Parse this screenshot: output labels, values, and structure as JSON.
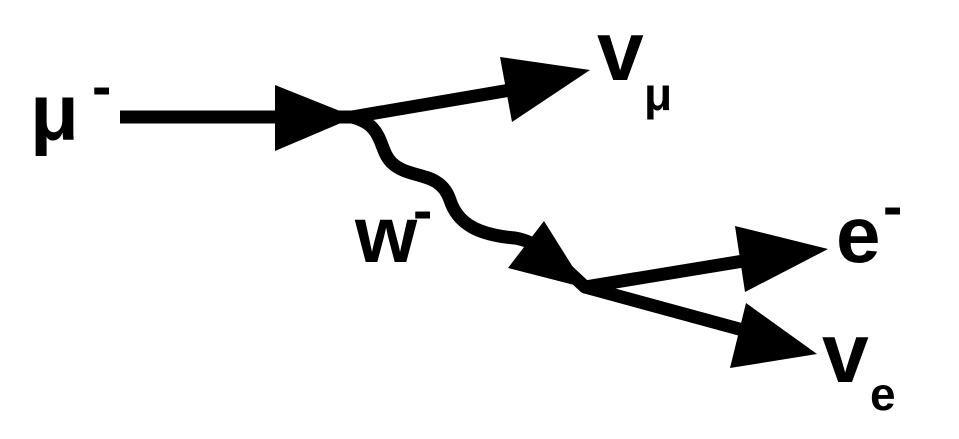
{
  "diagram": {
    "particles": {
      "muon": {
        "symbol": "μ",
        "charge": "-"
      },
      "muon_neutrino": {
        "symbol": "v",
        "subscript": "μ"
      },
      "w_boson": {
        "symbol": "w",
        "charge": "-"
      },
      "electron": {
        "symbol": "e",
        "charge": "-"
      },
      "electron_neutrino": {
        "symbol": "v",
        "subscript": "e"
      }
    },
    "colors": {
      "ink": "#000000",
      "background": "#ffffff"
    }
  }
}
